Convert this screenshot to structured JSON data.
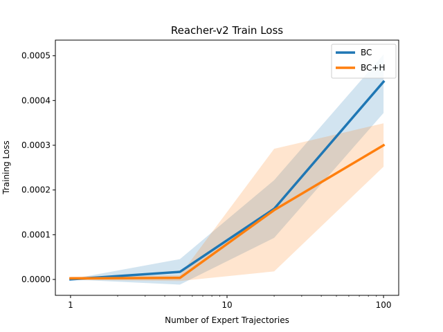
{
  "chart_data": {
    "type": "line",
    "title": "Reacher-v2 Train Loss",
    "xlabel": "Number of Expert Trajectories",
    "ylabel": "Training Loss",
    "x_scale": "log",
    "x": [
      1,
      5,
      20,
      100
    ],
    "xlim": [
      0.8,
      125
    ],
    "ylim": [
      -3.55e-05,
      0.000535
    ],
    "x_ticks": [
      1,
      10,
      100
    ],
    "x_tick_labels": [
      "1",
      "10",
      "100"
    ],
    "y_ticks": [
      0,
      0.0001,
      0.0002,
      0.0003,
      0.0004,
      0.0005
    ],
    "y_tick_labels": [
      "0.0000",
      "0.0001",
      "0.0002",
      "0.0003",
      "0.0004",
      "0.0005"
    ],
    "grid": false,
    "legend_position": "top-right",
    "series": [
      {
        "name": "BC",
        "color": "#1f77b4",
        "values": [
          3e-07,
          1.7e-05,
          0.000158,
          0.000442
        ],
        "lower": [
          -1e-07,
          -1.15e-05,
          9.3e-05,
          0.000372
        ],
        "upper": [
          7e-07,
          4.55e-05,
          0.000222,
          0.000503
        ]
      },
      {
        "name": "BC+H",
        "color": "#ff7f0e",
        "values": [
          2.5e-06,
          3.5e-06,
          0.000155,
          0.0003
        ],
        "lower": [
          -1e-06,
          -3.5e-06,
          1.8e-05,
          0.000252
        ],
        "upper": [
          6e-06,
          9.5e-06,
          0.000292,
          0.000349
        ]
      }
    ]
  }
}
